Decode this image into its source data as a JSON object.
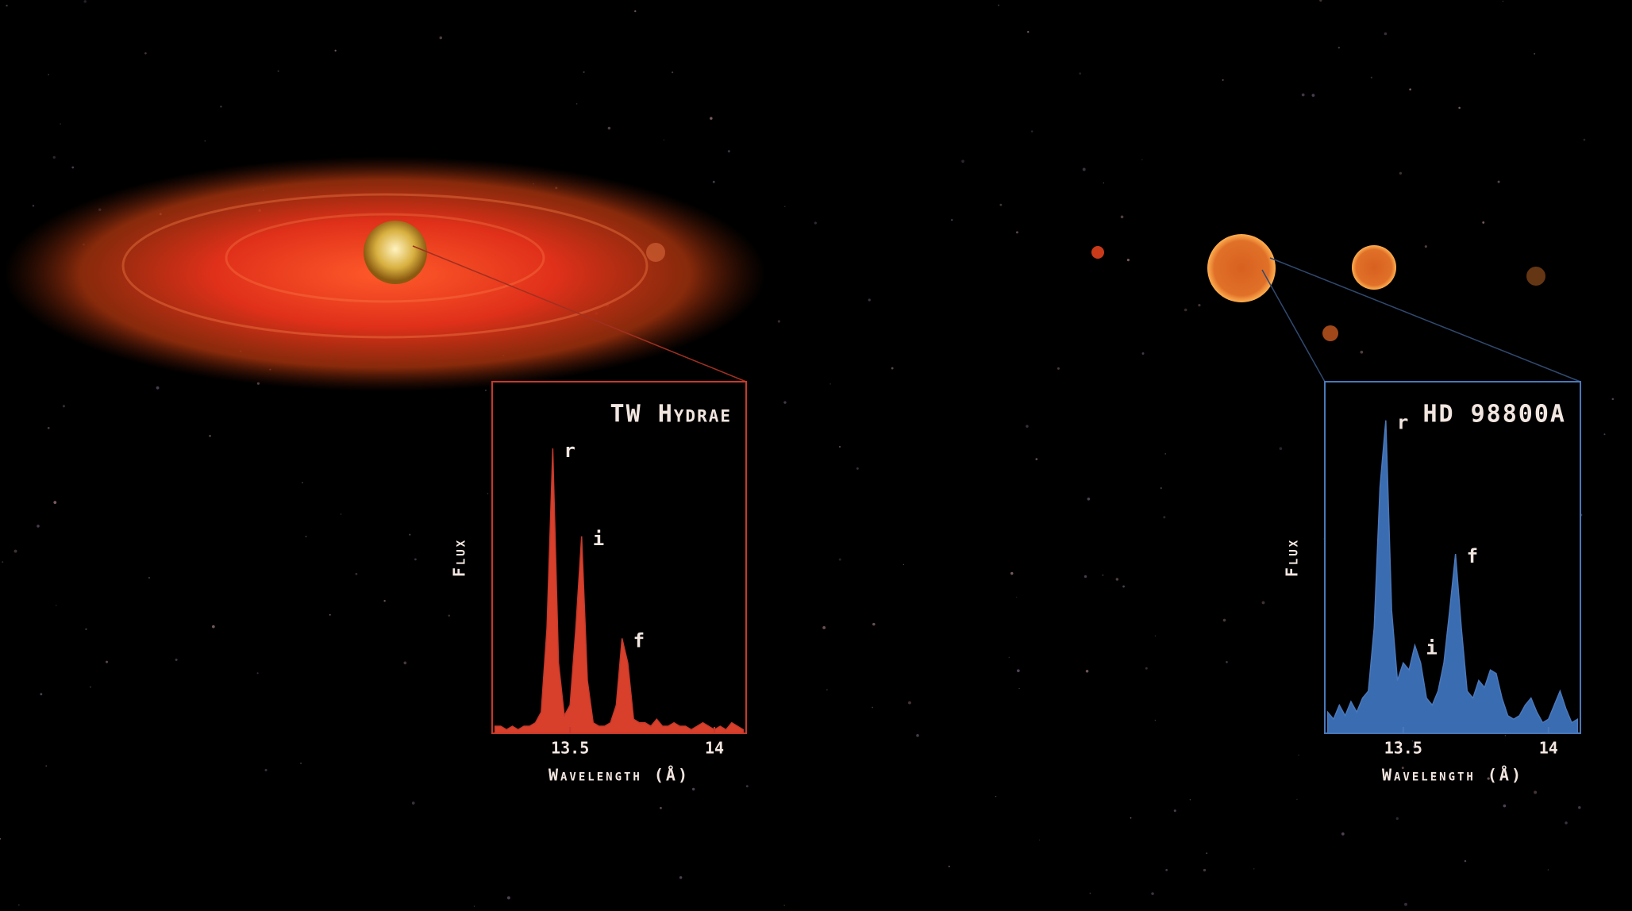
{
  "chart_data": [
    {
      "type": "area",
      "title": "TW Hydrae",
      "x_label": "Wavelength (Å)",
      "y_label": "Flux",
      "color": "#d8402c",
      "edge_color": "#c8392a",
      "x": [
        13.24,
        13.26,
        13.28,
        13.3,
        13.32,
        13.34,
        13.36,
        13.38,
        13.4,
        13.42,
        13.44,
        13.46,
        13.48,
        13.5,
        13.52,
        13.54,
        13.56,
        13.58,
        13.6,
        13.62,
        13.64,
        13.66,
        13.68,
        13.7,
        13.72,
        13.74,
        13.76,
        13.78,
        13.8,
        13.82,
        13.84,
        13.86,
        13.88,
        13.9,
        13.92,
        13.94,
        13.96,
        13.98,
        14.0,
        14.02,
        14.04,
        14.06,
        14.08,
        14.1
      ],
      "values": [
        0.02,
        0.02,
        0.01,
        0.02,
        0.01,
        0.02,
        0.02,
        0.03,
        0.06,
        0.3,
        0.81,
        0.2,
        0.05,
        0.08,
        0.3,
        0.56,
        0.15,
        0.03,
        0.02,
        0.02,
        0.03,
        0.08,
        0.27,
        0.2,
        0.04,
        0.03,
        0.03,
        0.02,
        0.04,
        0.02,
        0.02,
        0.03,
        0.02,
        0.02,
        0.01,
        0.02,
        0.03,
        0.02,
        0.01,
        0.02,
        0.01,
        0.03,
        0.02,
        0.01
      ],
      "xlim": [
        13.23,
        14.11
      ],
      "ylim": [
        0,
        1
      ],
      "xticks": [
        13.5,
        14
      ],
      "annotations": [
        {
          "text": "r",
          "x": 13.44,
          "y": 0.81
        },
        {
          "text": "i",
          "x": 13.54,
          "y": 0.56
        },
        {
          "text": "f",
          "x": 13.68,
          "y": 0.27
        }
      ]
    },
    {
      "type": "area",
      "title": "HD 98800A",
      "x_label": "Wavelength (Å)",
      "y_label": "Flux",
      "color": "#3a6cb2",
      "edge_color": "#4a78ba",
      "x": [
        13.24,
        13.26,
        13.28,
        13.3,
        13.32,
        13.34,
        13.36,
        13.38,
        13.4,
        13.42,
        13.44,
        13.46,
        13.48,
        13.5,
        13.52,
        13.54,
        13.56,
        13.58,
        13.6,
        13.62,
        13.64,
        13.66,
        13.68,
        13.7,
        13.72,
        13.74,
        13.76,
        13.78,
        13.8,
        13.82,
        13.84,
        13.86,
        13.88,
        13.9,
        13.92,
        13.94,
        13.96,
        13.98,
        14.0,
        14.02,
        14.04,
        14.06,
        14.08,
        14.1
      ],
      "values": [
        0.06,
        0.04,
        0.08,
        0.05,
        0.09,
        0.06,
        0.1,
        0.12,
        0.3,
        0.7,
        0.89,
        0.35,
        0.15,
        0.2,
        0.18,
        0.25,
        0.2,
        0.1,
        0.08,
        0.12,
        0.2,
        0.35,
        0.51,
        0.3,
        0.12,
        0.1,
        0.15,
        0.13,
        0.18,
        0.17,
        0.1,
        0.05,
        0.04,
        0.05,
        0.08,
        0.1,
        0.06,
        0.03,
        0.04,
        0.08,
        0.12,
        0.07,
        0.03,
        0.04
      ],
      "xlim": [
        13.23,
        14.11
      ],
      "ylim": [
        0,
        1
      ],
      "xticks": [
        13.5,
        14
      ],
      "annotations": [
        {
          "text": "r",
          "x": 13.44,
          "y": 0.89
        },
        {
          "text": "i",
          "x": 13.54,
          "y": 0.25
        },
        {
          "text": "f",
          "x": 13.68,
          "y": 0.51
        }
      ]
    }
  ]
}
